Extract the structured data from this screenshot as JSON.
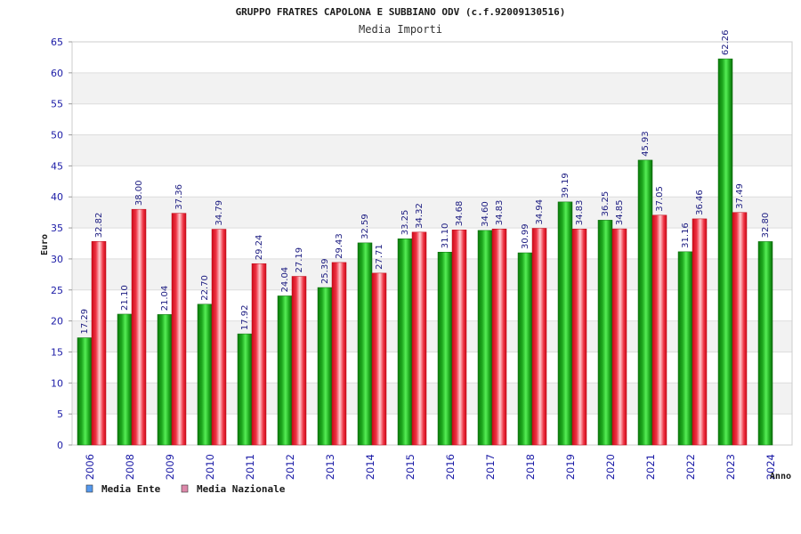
{
  "chart_data": {
    "type": "bar",
    "title": "GRUPPO FRATRES CAPOLONA E SUBBIANO ODV (c.f.92009130516)",
    "subtitle": "Media Importi",
    "xlabel": "Anno",
    "ylabel": "Euro",
    "ylim": [
      0,
      65
    ],
    "yticks": [
      0,
      5,
      10,
      15,
      20,
      25,
      30,
      35,
      40,
      45,
      50,
      55,
      60,
      65
    ],
    "grid": true,
    "legend_position": "bottom-left",
    "categories": [
      "2006",
      "2008",
      "2009",
      "2010",
      "2011",
      "2012",
      "2013",
      "2014",
      "2015",
      "2016",
      "2017",
      "2018",
      "2019",
      "2020",
      "2021",
      "2022",
      "2023",
      "2024"
    ],
    "series": [
      {
        "name": "Media Ente",
        "color": "#2bbb2b",
        "legend_color": "#5599ee",
        "values": [
          17.29,
          21.1,
          21.04,
          22.7,
          17.92,
          24.04,
          25.39,
          32.59,
          33.25,
          31.1,
          34.6,
          30.99,
          39.19,
          36.25,
          45.93,
          31.16,
          62.26,
          32.8
        ],
        "labels": [
          "17.29",
          "21.10",
          "21.04",
          "22.70",
          "17.92",
          "24.04",
          "25.39",
          "32.59",
          "33.25",
          "31.10",
          "34.60",
          "30.99",
          "39.19",
          "36.25",
          "45.93",
          "31.16",
          "62.26",
          "32.80"
        ]
      },
      {
        "name": "Media Nazionale",
        "color": "#ee3344",
        "legend_color": "#dd88aa",
        "values": [
          32.82,
          38.0,
          37.36,
          34.79,
          29.24,
          27.19,
          29.43,
          27.71,
          34.32,
          34.68,
          34.83,
          34.94,
          34.83,
          34.85,
          37.05,
          36.46,
          37.49,
          null
        ],
        "labels": [
          "32.82",
          "38.00",
          "37.36",
          "34.79",
          "29.24",
          "27.19",
          "29.43",
          "27.71",
          "34.32",
          "34.68",
          "34.83",
          "34.94",
          "34.83",
          "34.85",
          "37.05",
          "36.46",
          "37.49",
          ""
        ]
      }
    ]
  }
}
